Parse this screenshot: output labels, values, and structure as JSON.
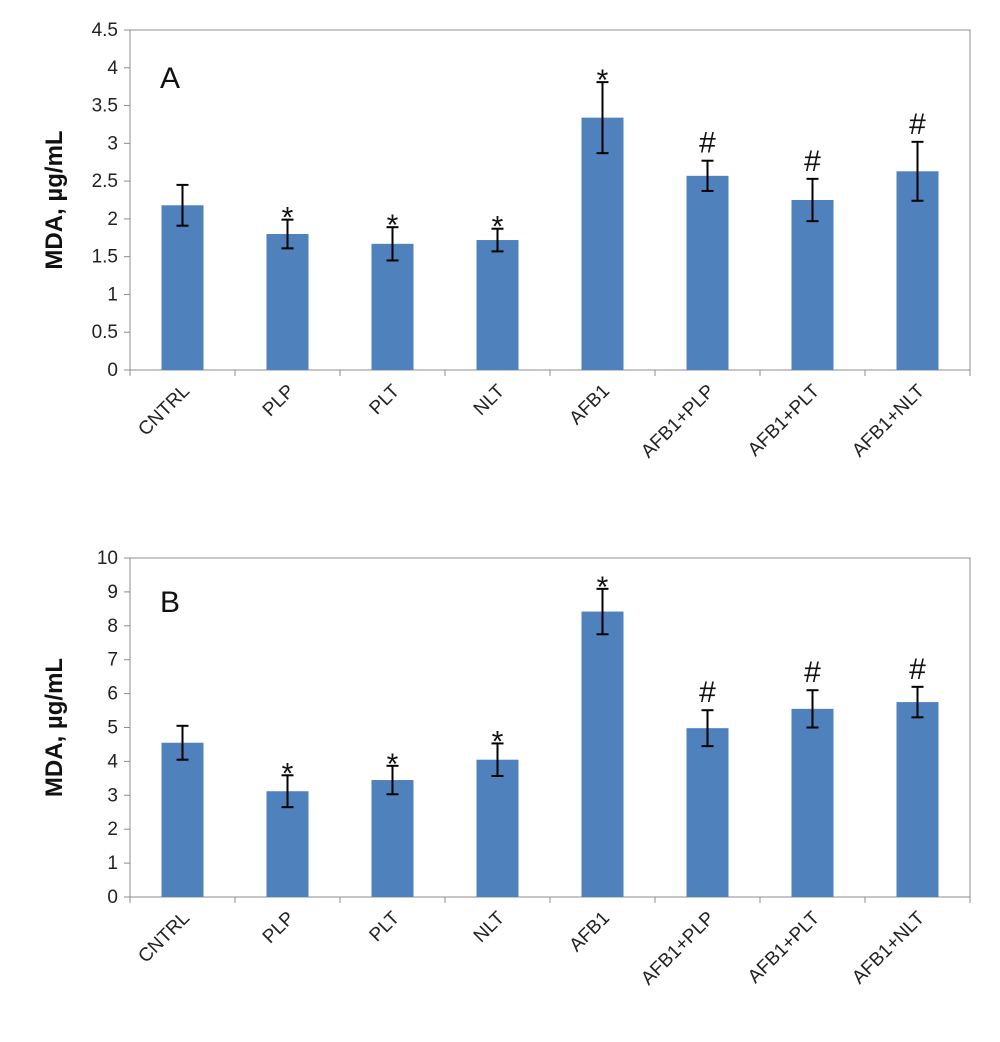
{
  "chart_data": [
    {
      "type": "bar",
      "panel_label": "A",
      "ylabel": "MDA, µg/mL",
      "ylim": [
        0,
        4.5
      ],
      "yticks": [
        "0",
        "0.5",
        "1",
        "1.5",
        "2",
        "2.5",
        "3",
        "3.5",
        "4",
        "4.5"
      ],
      "categories": [
        "CNTRL",
        "PLP",
        "PLT",
        "NLT",
        "AFB1",
        "AFB1+PLP",
        "AFB1+PLT",
        "AFB1+NLT"
      ],
      "values": [
        2.18,
        1.8,
        1.67,
        1.72,
        3.34,
        2.57,
        2.25,
        2.63
      ],
      "errors": [
        0.27,
        0.19,
        0.22,
        0.15,
        0.47,
        0.2,
        0.28,
        0.39
      ],
      "significance": [
        "",
        "*",
        "*",
        "*",
        "*",
        "#",
        "#",
        "#"
      ],
      "bar_color": "#4f81bd",
      "grid": false
    },
    {
      "type": "bar",
      "panel_label": "B",
      "ylabel": "MDA, µg/mL",
      "ylim": [
        0,
        10
      ],
      "yticks": [
        "0",
        "1",
        "2",
        "3",
        "4",
        "5",
        "6",
        "7",
        "8",
        "9",
        "10"
      ],
      "categories": [
        "CNTRL",
        "PLP",
        "PLT",
        "NLT",
        "AFB1",
        "AFB1+PLP",
        "AFB1+PLT",
        "AFB1+NLT"
      ],
      "values": [
        4.55,
        3.12,
        3.45,
        4.05,
        8.42,
        4.98,
        5.55,
        5.75
      ],
      "errors": [
        0.5,
        0.47,
        0.42,
        0.48,
        0.67,
        0.53,
        0.55,
        0.45
      ],
      "significance": [
        "",
        "*",
        "*",
        "*",
        "*",
        "#",
        "#",
        "#"
      ],
      "bar_color": "#4f81bd",
      "grid": false
    }
  ]
}
